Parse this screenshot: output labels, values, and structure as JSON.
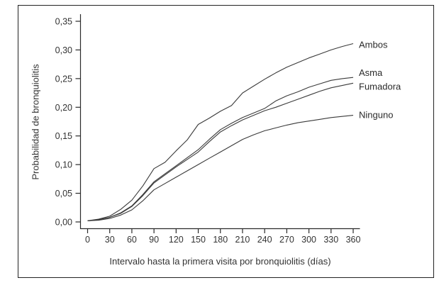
{
  "figure": {
    "background": "#ffffff",
    "border_color": "#222222"
  },
  "chart_data": {
    "type": "line",
    "title": "",
    "xlabel": "Intervalo hasta la primera visita por bronquiolitis (días)",
    "ylabel": "Probabilidad de bronquiolitis",
    "xlim": [
      0,
      360
    ],
    "ylim": [
      0,
      0.35
    ],
    "grid": false,
    "legend_position": "labels-at-curve-ends",
    "line_color": "#3a3a3a",
    "axis_color": "#2a2a2a",
    "x_ticks": [
      0,
      30,
      60,
      90,
      120,
      150,
      180,
      210,
      240,
      270,
      300,
      330,
      360
    ],
    "x_tick_labels": [
      "0",
      "30",
      "60",
      "90",
      "120",
      "150",
      "180",
      "210",
      "240",
      "270",
      "300",
      "330",
      "360"
    ],
    "y_ticks": [
      0,
      0.05,
      0.1,
      0.15,
      0.2,
      0.25,
      0.3,
      0.35
    ],
    "y_tick_labels": [
      "0,00",
      "0,05",
      "0,10",
      "0,15",
      "0,20",
      "0,25",
      "0,30",
      "0,35"
    ],
    "x": [
      0,
      15,
      30,
      45,
      60,
      75,
      90,
      105,
      120,
      135,
      150,
      165,
      180,
      195,
      210,
      225,
      240,
      255,
      270,
      285,
      300,
      315,
      330,
      345,
      360
    ],
    "series": [
      {
        "name": "Ambos",
        "values": [
          0.002,
          0.005,
          0.01,
          0.022,
          0.038,
          0.063,
          0.093,
          0.104,
          0.124,
          0.143,
          0.17,
          0.181,
          0.193,
          0.203,
          0.225,
          0.237,
          0.249,
          0.26,
          0.27,
          0.278,
          0.286,
          0.293,
          0.3,
          0.306,
          0.311
        ]
      },
      {
        "name": "Asma",
        "values": [
          0.002,
          0.004,
          0.008,
          0.016,
          0.028,
          0.048,
          0.07,
          0.084,
          0.098,
          0.112,
          0.126,
          0.144,
          0.161,
          0.172,
          0.182,
          0.19,
          0.198,
          0.211,
          0.22,
          0.227,
          0.235,
          0.241,
          0.247,
          0.25,
          0.252
        ]
      },
      {
        "name": "Fumadora",
        "values": [
          0.002,
          0.004,
          0.008,
          0.015,
          0.027,
          0.046,
          0.068,
          0.082,
          0.096,
          0.109,
          0.122,
          0.14,
          0.157,
          0.168,
          0.178,
          0.186,
          0.194,
          0.2,
          0.207,
          0.214,
          0.221,
          0.228,
          0.234,
          0.238,
          0.242
        ]
      },
      {
        "name": "Ninguno",
        "values": [
          0.002,
          0.003,
          0.006,
          0.012,
          0.021,
          0.037,
          0.056,
          0.067,
          0.078,
          0.089,
          0.1,
          0.111,
          0.122,
          0.133,
          0.144,
          0.152,
          0.159,
          0.164,
          0.169,
          0.173,
          0.176,
          0.179,
          0.182,
          0.184,
          0.186
        ]
      }
    ]
  }
}
